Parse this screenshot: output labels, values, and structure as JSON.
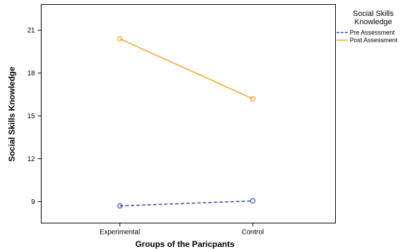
{
  "chart_data": {
    "type": "line",
    "categories": [
      "Experimental",
      "Control"
    ],
    "xlabel": "Groups of the Paricpants",
    "ylabel": "Social Skills Knowledge",
    "yticks": [
      9,
      12,
      15,
      18,
      21
    ],
    "ylim": [
      7.5,
      22.8
    ],
    "grid": false,
    "legend": {
      "title_line1": "Social Skills",
      "title_line2": "Knowledge",
      "placement": "right"
    },
    "series": [
      {
        "name": "Pre Assessment",
        "values": [
          8.7,
          9.05
        ],
        "color": "#3c4fb0",
        "dash": "dashed"
      },
      {
        "name": "Post Assessment",
        "values": [
          20.4,
          16.2
        ],
        "color": "#f5a623",
        "dash": "solid"
      }
    ]
  }
}
